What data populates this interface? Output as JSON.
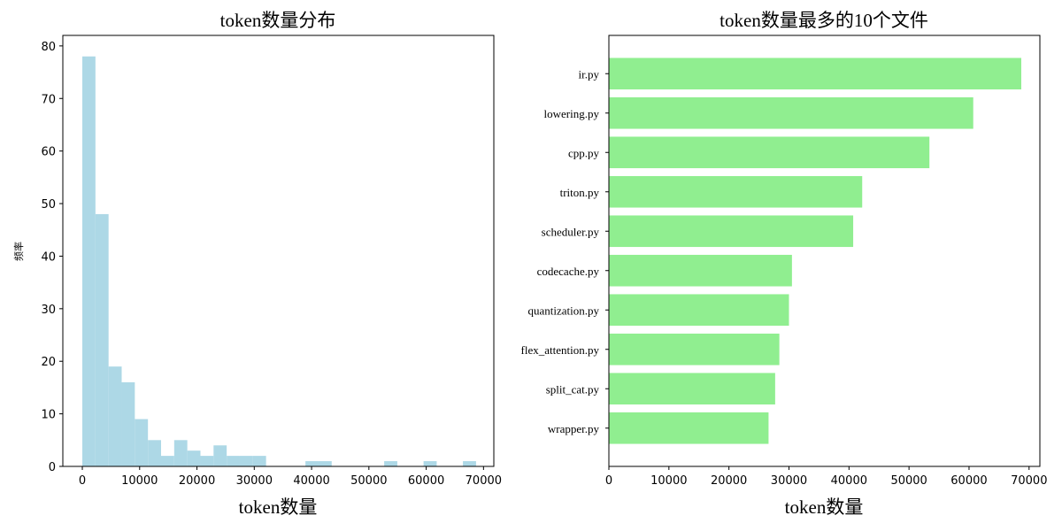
{
  "chart_data": [
    {
      "type": "bar",
      "title": "token数量分布",
      "xlabel": "token数量",
      "ylabel": "频率",
      "xlim": [
        -3400,
        71800
      ],
      "ylim": [
        0,
        82
      ],
      "xticks": [
        0,
        10000,
        20000,
        30000,
        40000,
        50000,
        60000,
        70000
      ],
      "yticks": [
        0,
        10,
        20,
        30,
        40,
        50,
        60,
        70,
        80
      ],
      "bin_edges": [
        0,
        2290,
        4580,
        6870,
        9160,
        11450,
        13740,
        16030,
        18320,
        20610,
        22900,
        25190,
        27480,
        29770,
        32060,
        34350,
        36640,
        38930,
        41220,
        43510,
        45800,
        48090,
        50380,
        52670,
        54960,
        57250,
        59540,
        61830,
        64120,
        66410,
        68700
      ],
      "values": [
        78,
        48,
        19,
        16,
        9,
        5,
        2,
        5,
        3,
        2,
        4,
        2,
        2,
        2,
        0,
        0,
        0,
        1,
        1,
        0,
        0,
        0,
        0,
        1,
        0,
        0,
        1,
        0,
        0,
        1
      ],
      "color": "#add8e6",
      "grid": false
    },
    {
      "type": "bar",
      "orientation": "horizontal",
      "title": "token数量最多的10个文件",
      "xlabel": "token数量",
      "ylabel": "",
      "xlim": [
        0,
        71800
      ],
      "xticks": [
        0,
        10000,
        20000,
        30000,
        40000,
        50000,
        60000,
        70000
      ],
      "categories": [
        "ir.py",
        "lowering.py",
        "cpp.py",
        "triton.py",
        "scheduler.py",
        "codecache.py",
        "quantization.py",
        "flex_attention.py",
        "split_cat.py",
        "wrapper.py"
      ],
      "values": [
        68700,
        60700,
        53400,
        42200,
        40700,
        30500,
        30000,
        28400,
        27700,
        26600
      ],
      "color": "#90ee90",
      "grid": false
    }
  ]
}
